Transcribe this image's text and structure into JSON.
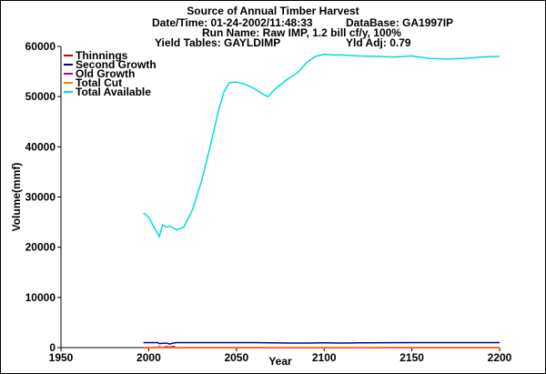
{
  "header": {
    "title": "Source of Annual Timber Harvest",
    "datetime_label": "Date/Time: 01-24-2002/11:48:33",
    "database_label": "DataBase: GA1997IP",
    "run_label": "Run Name: Raw IMP, 1.2 bill cf/y, 100%",
    "yield_label": "Yield Tables: GAYLDIMP",
    "yldadj_label": "Yld Adj: 0.79"
  },
  "chart_data": {
    "type": "line",
    "title": "Source of Annual Timber Harvest",
    "xlabel": "Year",
    "ylabel": "Volume(mmf)",
    "xlim": [
      1950,
      2200
    ],
    "ylim": [
      0,
      60000
    ],
    "x_ticks": [
      1950,
      2000,
      2050,
      2100,
      2150,
      2200
    ],
    "y_ticks": [
      0,
      10000,
      20000,
      30000,
      40000,
      50000,
      60000
    ],
    "grid": false,
    "legend_position": "top-left",
    "series": [
      {
        "name": "Thinnings",
        "color": "#cc0000",
        "x": [
          1997,
          2200
        ],
        "y": [
          0,
          0
        ]
      },
      {
        "name": "Second Growth",
        "color": "#0000aa",
        "x": [
          1997,
          2005,
          2006,
          2010,
          2012,
          2014,
          2016,
          2020,
          2060,
          2070,
          2080,
          2090,
          2100,
          2110,
          2120,
          2150,
          2200
        ],
        "y": [
          1000,
          1000,
          800,
          900,
          700,
          900,
          1000,
          1000,
          1000,
          950,
          900,
          900,
          950,
          900,
          950,
          1000,
          1000
        ]
      },
      {
        "name": "Old Growth",
        "color": "#aa00aa",
        "x": [
          1997,
          2004,
          2006,
          2008,
          2010,
          2012,
          2014,
          2016,
          2020,
          2200
        ],
        "y": [
          0,
          0,
          150,
          0,
          200,
          100,
          250,
          0,
          0,
          0
        ]
      },
      {
        "name": "Total Cut",
        "color": "#ff8000",
        "x": [
          1997,
          2200
        ],
        "y": [
          0,
          0
        ]
      },
      {
        "name": "Total Available",
        "color": "#00dddd",
        "x": [
          1997,
          2000,
          2003,
          2006,
          2008,
          2010,
          2012,
          2014,
          2016,
          2020,
          2025,
          2030,
          2035,
          2040,
          2043,
          2046,
          2050,
          2055,
          2060,
          2065,
          2068,
          2072,
          2078,
          2085,
          2090,
          2095,
          2100,
          2105,
          2110,
          2120,
          2130,
          2140,
          2150,
          2160,
          2170,
          2180,
          2190,
          2200
        ],
        "y": [
          26800,
          26000,
          24000,
          22100,
          24500,
          24000,
          24200,
          23800,
          23500,
          24000,
          27500,
          33000,
          40000,
          47500,
          51000,
          52800,
          52900,
          52500,
          51600,
          50500,
          50000,
          51500,
          53200,
          54800,
          56800,
          58000,
          58400,
          58300,
          58300,
          58100,
          58000,
          57900,
          58100,
          57600,
          57500,
          57600,
          57900,
          58000
        ]
      }
    ]
  }
}
